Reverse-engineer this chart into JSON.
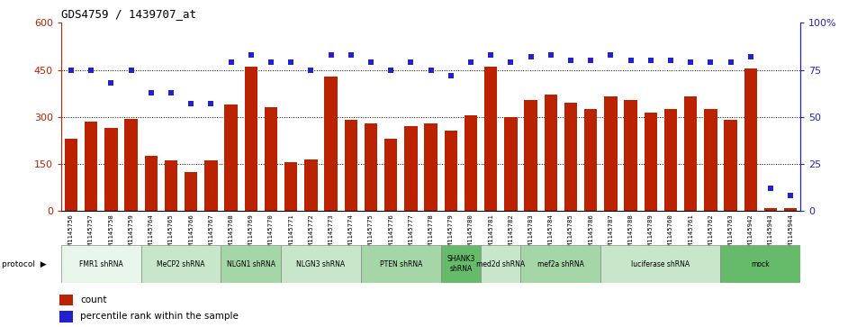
{
  "title": "GDS4759 / 1439707_at",
  "samples": [
    "GSM1145756",
    "GSM1145757",
    "GSM1145758",
    "GSM1145759",
    "GSM1145764",
    "GSM1145765",
    "GSM1145766",
    "GSM1145767",
    "GSM1145768",
    "GSM1145769",
    "GSM1145770",
    "GSM1145771",
    "GSM1145772",
    "GSM1145773",
    "GSM1145774",
    "GSM1145775",
    "GSM1145776",
    "GSM1145777",
    "GSM1145778",
    "GSM1145779",
    "GSM1145780",
    "GSM1145781",
    "GSM1145782",
    "GSM1145783",
    "GSM1145784",
    "GSM1145785",
    "GSM1145786",
    "GSM1145787",
    "GSM1145788",
    "GSM1145789",
    "GSM1145760",
    "GSM1145761",
    "GSM1145762",
    "GSM1145763",
    "GSM1145942",
    "GSM1145943",
    "GSM1145944"
  ],
  "counts": [
    230,
    285,
    265,
    295,
    175,
    160,
    125,
    160,
    340,
    460,
    330,
    155,
    165,
    430,
    290,
    280,
    230,
    270,
    280,
    255,
    305,
    460,
    300,
    355,
    370,
    345,
    325,
    365,
    355,
    315,
    325,
    365,
    325,
    290,
    455,
    10,
    10
  ],
  "percentiles": [
    75,
    75,
    68,
    75,
    63,
    63,
    57,
    57,
    79,
    83,
    79,
    79,
    75,
    83,
    83,
    79,
    75,
    79,
    75,
    72,
    79,
    83,
    79,
    82,
    83,
    80,
    80,
    83,
    80,
    80,
    80,
    79,
    79,
    79,
    82,
    12,
    8
  ],
  "protocols": [
    {
      "label": "FMR1 shRNA",
      "start": 0,
      "end": 4,
      "color": "#e8f5e9"
    },
    {
      "label": "MeCP2 shRNA",
      "start": 4,
      "end": 8,
      "color": "#c8e6c9"
    },
    {
      "label": "NLGN1 shRNA",
      "start": 8,
      "end": 11,
      "color": "#a5d6a7"
    },
    {
      "label": "NLGN3 shRNA",
      "start": 11,
      "end": 15,
      "color": "#c8e6c9"
    },
    {
      "label": "PTEN shRNA",
      "start": 15,
      "end": 19,
      "color": "#a5d6a7"
    },
    {
      "label": "SHANK3\nshRNA",
      "start": 19,
      "end": 21,
      "color": "#66bb6a"
    },
    {
      "label": "med2d shRNA",
      "start": 21,
      "end": 23,
      "color": "#c8e6c9"
    },
    {
      "label": "mef2a shRNA",
      "start": 23,
      "end": 27,
      "color": "#a5d6a7"
    },
    {
      "label": "luciferase shRNA",
      "start": 27,
      "end": 33,
      "color": "#c8e6c9"
    },
    {
      "label": "mock",
      "start": 33,
      "end": 37,
      "color": "#66bb6a"
    }
  ],
  "bar_color": "#bb2200",
  "scatter_color": "#2222cc",
  "ylim_left": [
    0,
    600
  ],
  "ylim_right": [
    0,
    100
  ],
  "yticks_left": [
    0,
    150,
    300,
    450,
    600
  ],
  "yticks_right": [
    0,
    25,
    50,
    75,
    100
  ],
  "ytick_labels_left": [
    "0",
    "150",
    "300",
    "450",
    "600"
  ],
  "ytick_labels_right": [
    "0",
    "25",
    "50",
    "75",
    "100%"
  ],
  "grid_values": [
    150,
    300,
    450
  ],
  "legend_count_label": "count",
  "legend_pct_label": "percentile rank within the sample"
}
